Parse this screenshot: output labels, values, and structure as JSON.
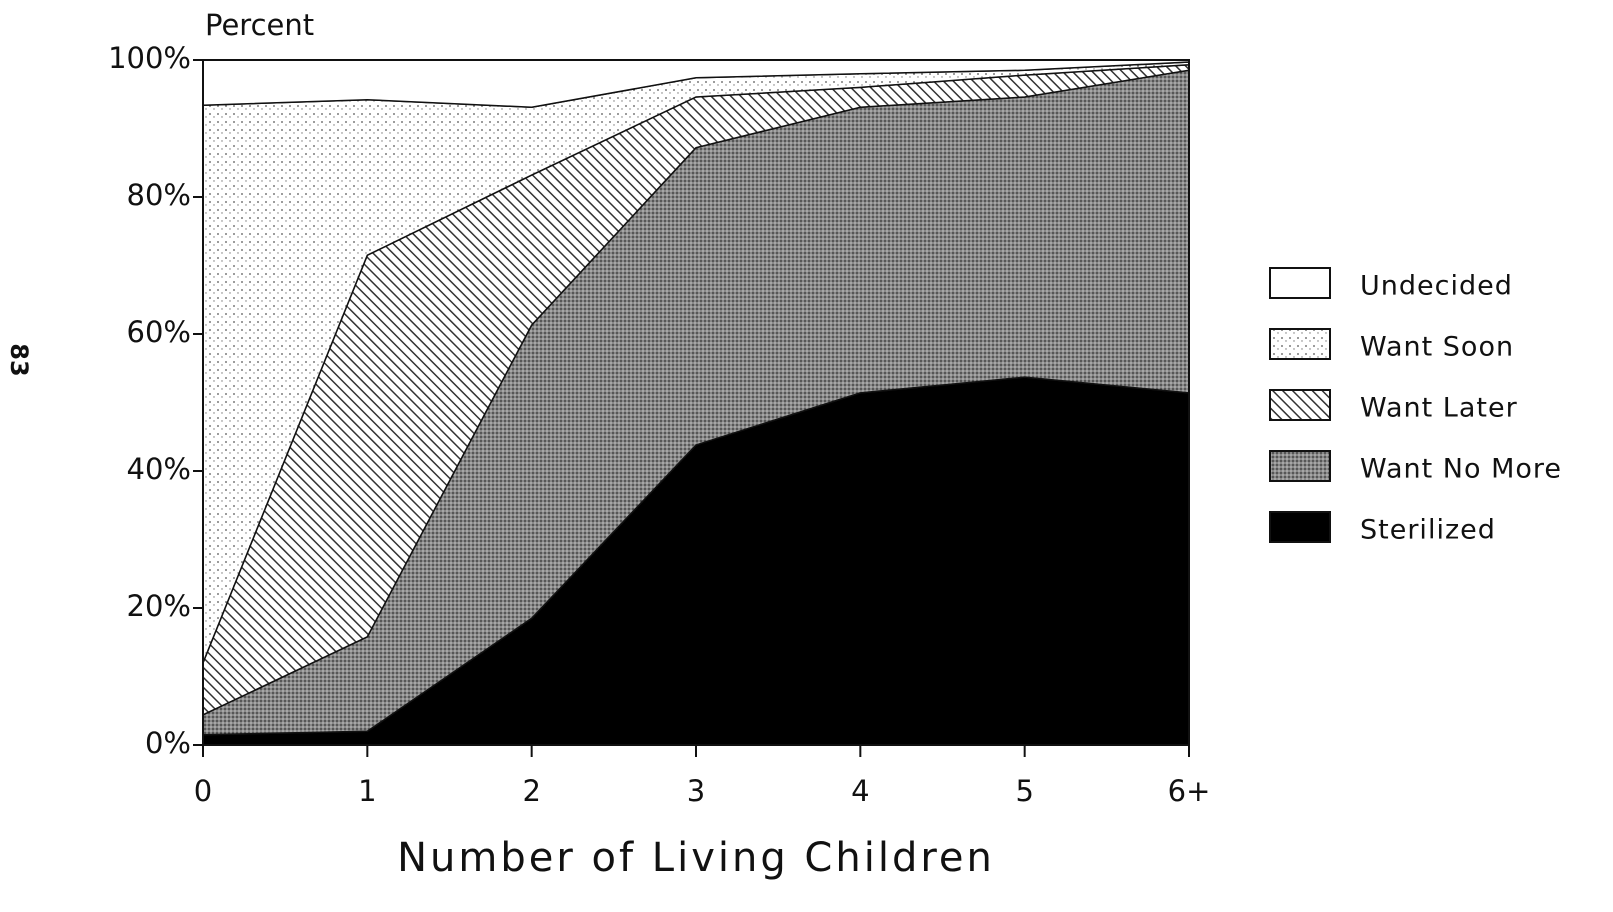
{
  "page_number": "83",
  "chart_data": {
    "type": "stacked-area",
    "y_label": "Percent",
    "x_label": "Number of Living Children",
    "categories": [
      "0",
      "1",
      "2",
      "3",
      "4",
      "5",
      "6+"
    ],
    "series": [
      {
        "name": "Sterilized",
        "color": "#000000",
        "pattern": "solid",
        "values": [
          1.5,
          2,
          18.5,
          43.8,
          51.4,
          53.7,
          51.4
        ]
      },
      {
        "name": "Want No More",
        "color": "#555555",
        "pattern": "dense-dots",
        "values": [
          2.9,
          13.8,
          42.8,
          43.4,
          41.7,
          40.9,
          47.1
        ]
      },
      {
        "name": "Want Later",
        "color": "#333333",
        "pattern": "hatch",
        "values": [
          7.6,
          55.7,
          21.9,
          7.4,
          2.9,
          3.2,
          0.8
        ]
      },
      {
        "name": "Want Soon",
        "color": "#555555",
        "pattern": "dots",
        "values": [
          81.4,
          22.7,
          9.9,
          2.8,
          2.0,
          0.7,
          0.4
        ]
      },
      {
        "name": "Undecided",
        "color": "#ffffff",
        "pattern": "none",
        "values": [
          6.6,
          5.8,
          6.9,
          2.6,
          2.0,
          1.5,
          0.3
        ]
      }
    ],
    "ylim": [
      0,
      100
    ],
    "yticks": [
      {
        "value": 0,
        "label": "0%"
      },
      {
        "value": 20,
        "label": "20%"
      },
      {
        "value": 40,
        "label": "40%"
      },
      {
        "value": 60,
        "label": "60%"
      },
      {
        "value": 80,
        "label": "80%"
      },
      {
        "value": 100,
        "label": "100%"
      }
    ],
    "legend": "right"
  }
}
